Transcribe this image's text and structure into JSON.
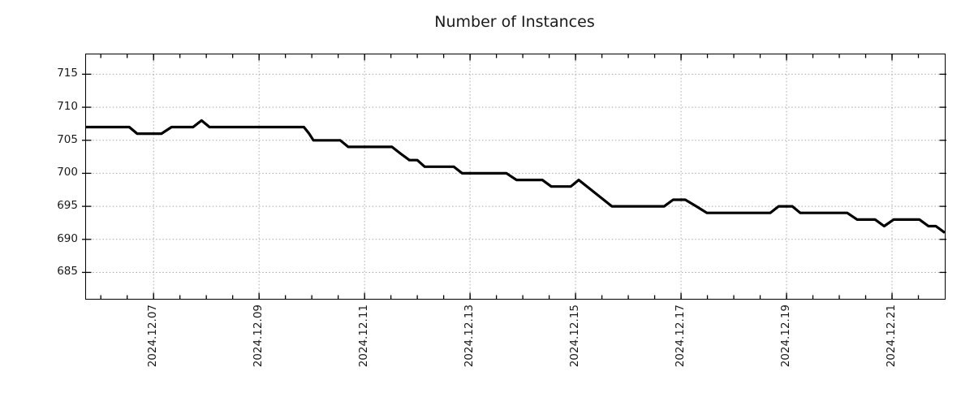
{
  "title": "Number of Instances",
  "chart_data": {
    "type": "line",
    "title": "Number of Instances",
    "xlabel": "",
    "ylabel": "",
    "x_unit": "days of 2024-12 (decimal day of month)",
    "xlim": [
      5.72,
      22.0
    ],
    "ylim": [
      681,
      718
    ],
    "grid": "dotted, both axes",
    "legend": "none",
    "line_color": "#000000",
    "grid_color": "#a9a9a9",
    "x_minor_tick_step_days": 0.5,
    "x_ticks": [
      {
        "value": 7,
        "label": "2024.12.07"
      },
      {
        "value": 9,
        "label": "2024.12.09"
      },
      {
        "value": 11,
        "label": "2024.12.11"
      },
      {
        "value": 13,
        "label": "2024.12.13"
      },
      {
        "value": 15,
        "label": "2024.12.15"
      },
      {
        "value": 17,
        "label": "2024.12.17"
      },
      {
        "value": 19,
        "label": "2024.12.19"
      },
      {
        "value": 21,
        "label": "2024.12.21"
      }
    ],
    "y_ticks": [
      {
        "value": 685,
        "label": "685"
      },
      {
        "value": 690,
        "label": "690"
      },
      {
        "value": 695,
        "label": "695"
      },
      {
        "value": 700,
        "label": "700"
      },
      {
        "value": 705,
        "label": "705"
      },
      {
        "value": 710,
        "label": "710"
      },
      {
        "value": 715,
        "label": "715"
      }
    ],
    "series": [
      {
        "name": "instances",
        "points": [
          [
            5.72,
            707
          ],
          [
            6.54,
            707
          ],
          [
            6.69,
            706
          ],
          [
            7.15,
            706
          ],
          [
            7.34,
            707
          ],
          [
            7.75,
            707
          ],
          [
            7.91,
            708
          ],
          [
            8.06,
            707
          ],
          [
            9.85,
            707
          ],
          [
            9.95,
            706
          ],
          [
            10.03,
            705
          ],
          [
            10.54,
            705
          ],
          [
            10.69,
            704
          ],
          [
            11.52,
            704
          ],
          [
            11.68,
            703
          ],
          [
            11.85,
            702
          ],
          [
            12.0,
            702
          ],
          [
            12.14,
            701
          ],
          [
            12.69,
            701
          ],
          [
            12.85,
            700
          ],
          [
            13.69,
            700
          ],
          [
            13.88,
            699
          ],
          [
            14.37,
            699
          ],
          [
            14.54,
            698
          ],
          [
            14.91,
            698
          ],
          [
            15.06,
            699
          ],
          [
            15.69,
            695
          ],
          [
            16.68,
            695
          ],
          [
            16.85,
            696
          ],
          [
            17.08,
            696
          ],
          [
            17.29,
            695
          ],
          [
            17.49,
            694
          ],
          [
            18.69,
            694
          ],
          [
            18.85,
            695
          ],
          [
            19.11,
            695
          ],
          [
            19.26,
            694
          ],
          [
            20.15,
            694
          ],
          [
            20.34,
            693
          ],
          [
            20.68,
            693
          ],
          [
            20.85,
            692
          ],
          [
            21.03,
            693
          ],
          [
            21.52,
            693
          ],
          [
            21.69,
            692
          ],
          [
            21.83,
            692
          ],
          [
            22.0,
            691
          ]
        ]
      }
    ]
  }
}
